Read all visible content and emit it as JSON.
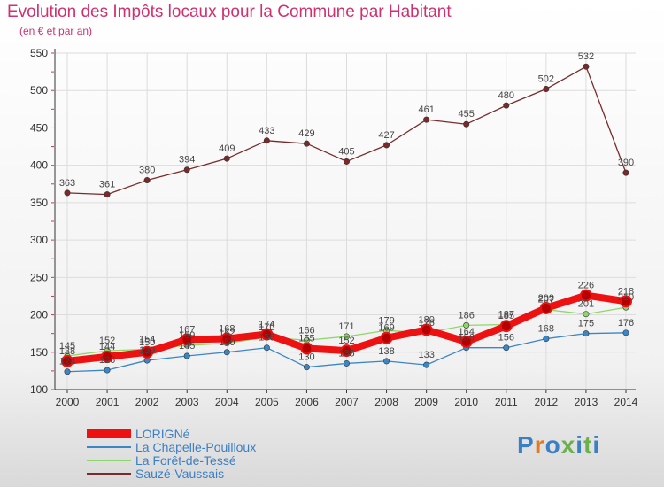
{
  "title": "Evolution des Impôts locaux pour la Commune par Habitant",
  "subtitle": "(en € et par an)",
  "logo": {
    "text": "Proxiti",
    "colors": [
      "#3b7fc4",
      "#e07b1f",
      "#3b7fc4",
      "#6ab04c",
      "#3b7fc4",
      "#6ab04c",
      "#3b7fc4"
    ]
  },
  "colors": {
    "title": "#d1306f",
    "axis": "#333333",
    "grid": "#dcdcdc",
    "legend_text": "#3b7fc4"
  },
  "chart_data": {
    "type": "line",
    "x": [
      "2000",
      "2001",
      "2002",
      "2003",
      "2004",
      "2005",
      "2006",
      "2007",
      "2008",
      "2009",
      "2010",
      "2011",
      "2012",
      "2013",
      "2014"
    ],
    "yticks": [
      "100",
      "150",
      "200",
      "250",
      "300",
      "350",
      "400",
      "450",
      "500",
      "550"
    ],
    "ylim": [
      100,
      550
    ],
    "grid": true,
    "legend_position": "bottom-left",
    "series": [
      {
        "name": "LORIGNé",
        "color": "#ee1111",
        "width": 8,
        "values": [
          138,
          144,
          150,
          167,
          168,
          174,
          155,
          152,
          169,
          180,
          164,
          185,
          209,
          226,
          218
        ],
        "labels": [
          "138",
          "144",
          "150",
          "167",
          "168",
          "174",
          "155",
          "152",
          "169",
          "180",
          "164",
          "185",
          "209",
          "226",
          "218"
        ]
      },
      {
        "name": "La Chapelle-Pouilloux",
        "color": "#3b86c6",
        "width": 1.3,
        "values": [
          124,
          126,
          139,
          145,
          150,
          156,
          130,
          135,
          138,
          133,
          156,
          156,
          168,
          175,
          176
        ],
        "labels": [
          "124",
          "126",
          "139",
          "145",
          "150",
          "156",
          "130",
          "135",
          "138",
          "133",
          "156",
          "156",
          "168",
          "175",
          "176"
        ]
      },
      {
        "name": "La Forêt-de-Tessé",
        "color": "#8fd668",
        "width": 1.3,
        "values": [
          145,
          152,
          154,
          159,
          162,
          170,
          166,
          171,
          179,
          176,
          186,
          187,
          207,
          201,
          210
        ],
        "labels": [
          "145",
          "152",
          "154",
          "159",
          "162",
          "170",
          "166",
          "171",
          "179",
          "176",
          "186",
          "187",
          "207",
          "201",
          "210"
        ]
      },
      {
        "name": "Sauzé-Vaussais",
        "color": "#7a2a2a",
        "width": 1.3,
        "values": [
          363,
          361,
          380,
          394,
          409,
          433,
          429,
          405,
          427,
          461,
          455,
          480,
          502,
          532,
          390
        ],
        "labels": [
          "363",
          "361",
          "380",
          "394",
          "409",
          "433",
          "429",
          "405",
          "427",
          "461",
          "455",
          "480",
          "502",
          "532",
          "390"
        ]
      }
    ]
  }
}
